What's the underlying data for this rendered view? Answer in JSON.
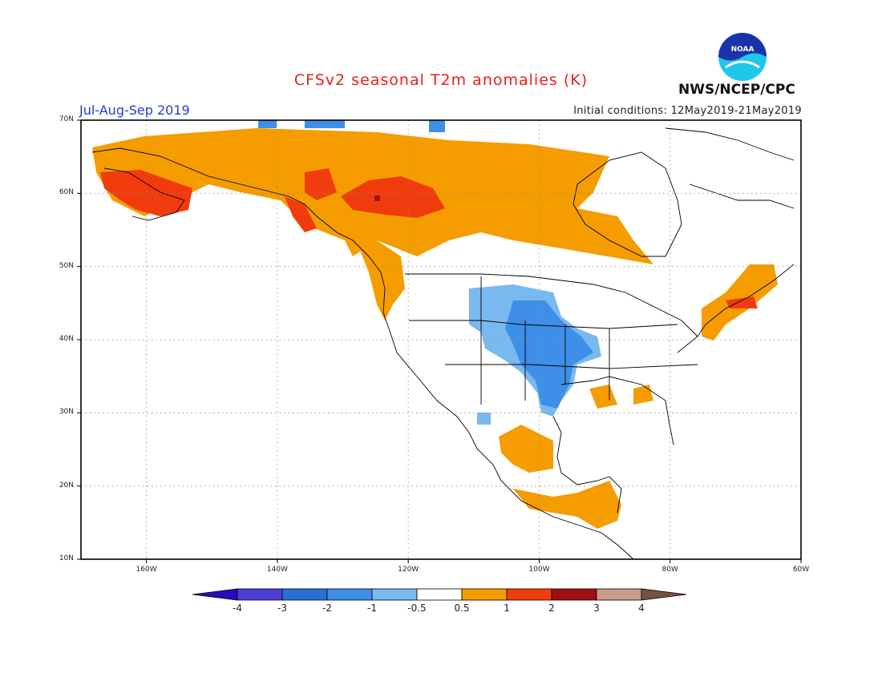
{
  "header": {
    "title": "CFSv2 seasonal T2m anomalies (K)",
    "season": "Jul-Aug-Sep 2019",
    "initial_conditions": "Initial conditions: 12May2019-21May2019",
    "agency": "NWS/NCEP/CPC",
    "logo_text": "NOAA"
  },
  "map": {
    "lat_labels": [
      "70N",
      "60N",
      "50N",
      "40N",
      "30N",
      "20N",
      "10N"
    ],
    "lon_labels": [
      "160W",
      "140W",
      "120W",
      "100W",
      "80W",
      "60W"
    ],
    "lon_range": [
      -170,
      -60
    ],
    "lat_range": [
      10,
      70
    ],
    "grid": true,
    "icons": {
      "logo": "noaa-logo-icon"
    }
  },
  "colorbar": {
    "labels": [
      "-4",
      "-3",
      "-2",
      "-1",
      "-0.5",
      "0.5",
      "1",
      "2",
      "3",
      "4"
    ],
    "colors": [
      "#2a0ac0",
      "#4b3fd6",
      "#2a6fd6",
      "#3e8fe8",
      "#7ab8f0",
      "#ffffff",
      "#f59c00",
      "#f03c0c",
      "#a01010",
      "#c89c88",
      "#7a5040"
    ]
  },
  "anomaly_colors": {
    "warm1": "#f59c00",
    "warm2": "#f03c0c",
    "warm3": "#a01010",
    "cool1": "#7ab8f0",
    "cool2": "#3e8fe8"
  }
}
